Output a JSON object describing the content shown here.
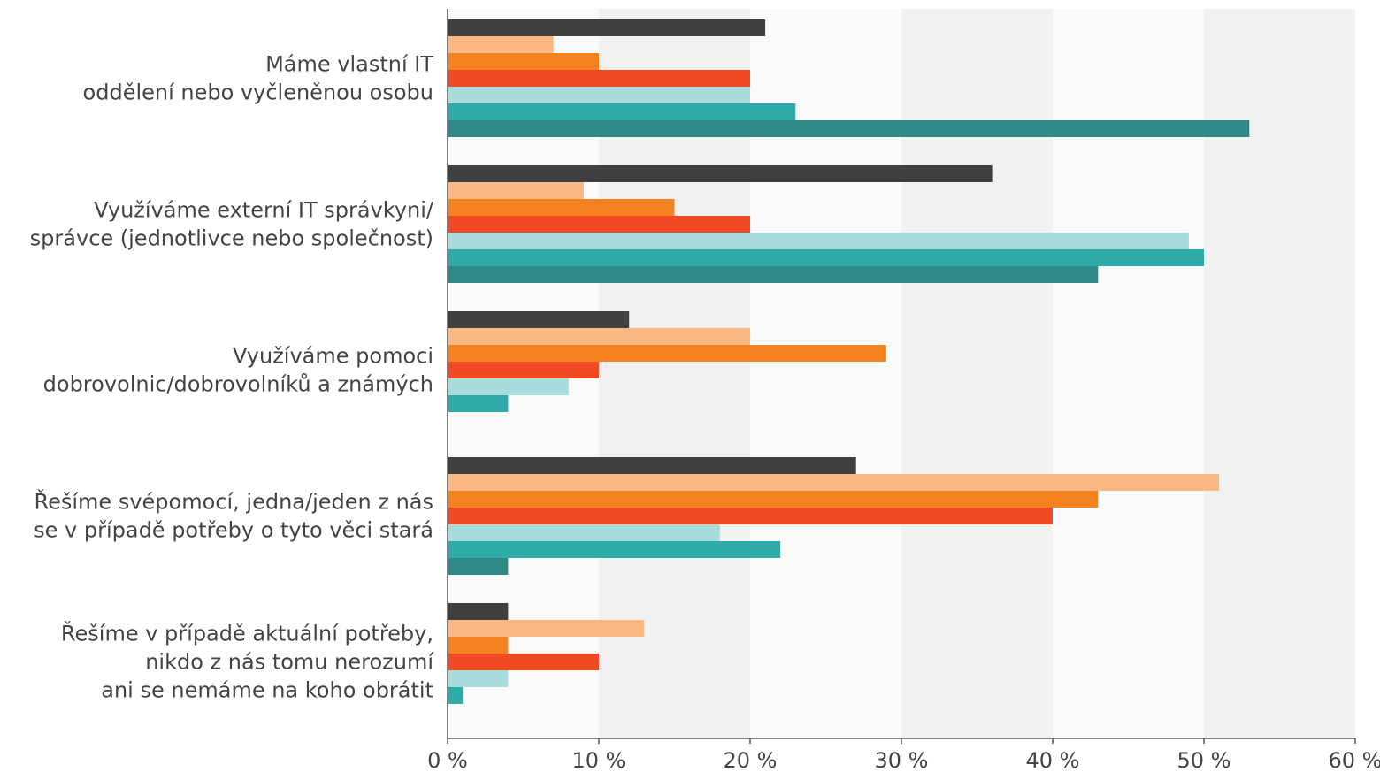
{
  "chart_data": {
    "type": "bar",
    "orientation": "horizontal",
    "categories": [
      "Máme vlastní IT\noddělení nebo vyčleněnou osobu",
      "Využíváme externí IT správkyni/\nsprávce (jednotlivce nebo společnost)",
      "Využíváme pomoci\ndobrovolnic/dobrovolníků a známých",
      "Řešíme svépomocí, jedna/jeden z nás\nse v případě potřeby o tyto věci stará",
      "Řešíme v případě aktuální potřeby,\nnikdo z nás tomu nerozumí\nani se nemáme na koho obrátit"
    ],
    "series": [
      {
        "color": "#404040",
        "values": [
          21,
          36,
          12,
          27,
          4
        ]
      },
      {
        "color": "#fbb883",
        "values": [
          7,
          9,
          20,
          51,
          13
        ]
      },
      {
        "color": "#f58220",
        "values": [
          10,
          15,
          29,
          43,
          4
        ]
      },
      {
        "color": "#f04923",
        "values": [
          20,
          20,
          10,
          40,
          10
        ]
      },
      {
        "color": "#a8dcdc",
        "values": [
          20,
          49,
          8,
          18,
          4
        ]
      },
      {
        "color": "#2eaaa8",
        "values": [
          23,
          50,
          4,
          22,
          1
        ]
      },
      {
        "color": "#2f8a87",
        "values": [
          53,
          43,
          null,
          4,
          null
        ]
      }
    ],
    "xlim": [
      0,
      60
    ],
    "xticks": [
      {
        "value": 0,
        "label": "0 %"
      },
      {
        "value": 10,
        "label": "10 %"
      },
      {
        "value": 20,
        "label": "20 %"
      },
      {
        "value": 30,
        "label": "30 %"
      },
      {
        "value": 40,
        "label": "40 %"
      },
      {
        "value": 50,
        "label": "50 %"
      },
      {
        "value": 60,
        "label": "60 %"
      }
    ],
    "grid": true
  }
}
